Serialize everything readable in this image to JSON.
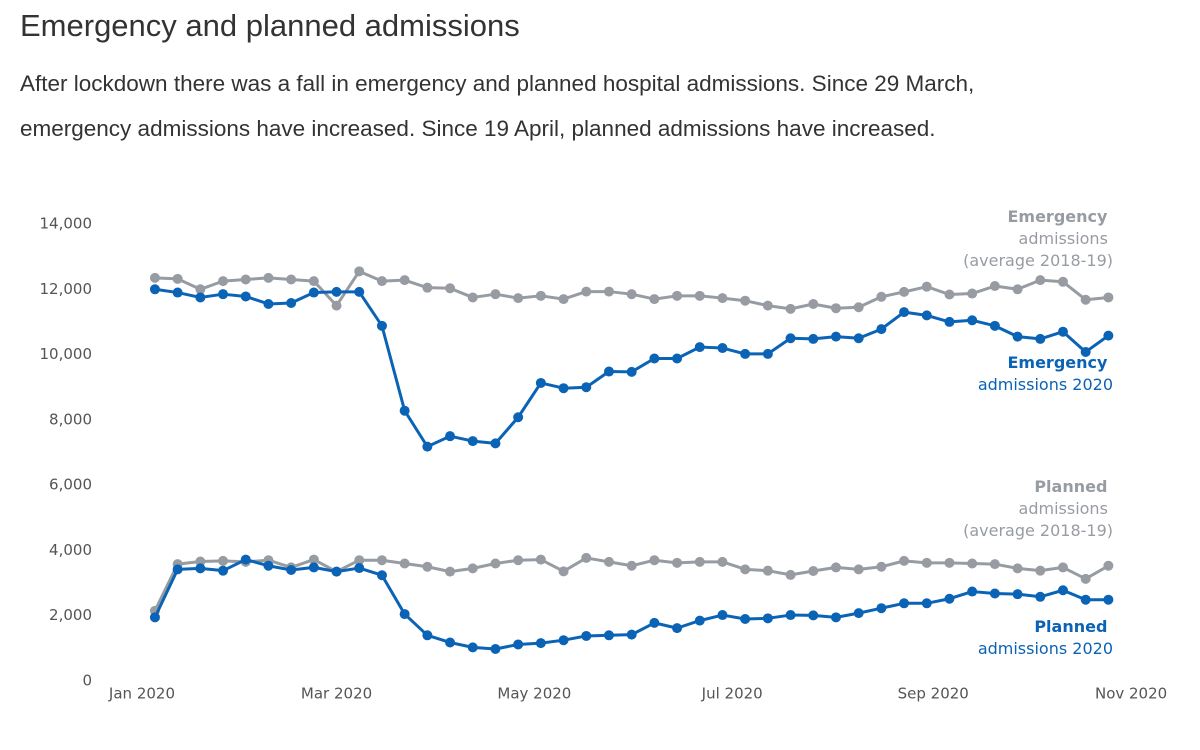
{
  "chart_data": {
    "type": "line",
    "title": "Emergency and planned admissions",
    "subtitle": [
      "After lockdown there was a fall in emergency and planned hospital admissions. Since 29 March,",
      "emergency admissions have increased. Since 19 April, planned admissions have increased."
    ],
    "x": [
      4,
      11,
      18,
      25,
      32,
      39,
      46,
      53,
      60,
      67,
      74,
      81,
      88,
      95,
      102,
      109,
      116,
      123,
      130,
      137,
      144,
      151,
      158,
      165,
      172,
      179,
      186,
      193,
      200,
      207,
      214,
      221,
      228,
      235,
      242,
      249,
      256,
      263,
      270,
      277,
      284,
      291,
      298
    ],
    "xlim": [
      -11.4,
      317
    ],
    "xticks": [
      {
        "value": 0,
        "label": "Jan 2020"
      },
      {
        "value": 60,
        "label": "Mar 2020"
      },
      {
        "value": 121,
        "label": "May 2020"
      },
      {
        "value": 182,
        "label": "Jul 2020"
      },
      {
        "value": 244,
        "label": "Sep 2020"
      },
      {
        "value": 305,
        "label": "Nov 2020"
      }
    ],
    "ylim": [
      0,
      14000
    ],
    "yticks": [
      0,
      {
        "value": 2000,
        "label": "2,000"
      },
      {
        "value": 4000,
        "label": "4,000"
      },
      {
        "value": 6000,
        "label": "6,000"
      },
      {
        "value": 8000,
        "label": "8,000"
      },
      {
        "value": 10000,
        "label": "10,000"
      },
      {
        "value": 12000,
        "label": "12,000"
      },
      {
        "value": 14000,
        "label": "14,000"
      }
    ],
    "grid": false,
    "series": [
      {
        "name": "Emergency admissions (average 2018-19)",
        "color": "#979ca3",
        "values": [
          12350,
          12320,
          12000,
          12250,
          12300,
          12350,
          12300,
          12250,
          11500,
          12550,
          12250,
          12280,
          12050,
          12030,
          11750,
          11850,
          11730,
          11800,
          11700,
          11930,
          11930,
          11850,
          11700,
          11800,
          11800,
          11730,
          11650,
          11500,
          11400,
          11550,
          11420,
          11450,
          11770,
          11920,
          12080,
          11840,
          11870,
          12100,
          12000,
          12280,
          12230,
          11680,
          11750
        ]
      },
      {
        "name": "Emergency admissions 2020",
        "color": "#0b63b6",
        "values": [
          12000,
          11900,
          11750,
          11850,
          11780,
          11550,
          11580,
          11900,
          11920,
          11920,
          10880,
          8280,
          7180,
          7500,
          7350,
          7280,
          8080,
          9130,
          8970,
          9000,
          9480,
          9470,
          9880,
          9880,
          10230,
          10200,
          10020,
          10020,
          10500,
          10480,
          10550,
          10500,
          10780,
          11300,
          11200,
          11000,
          11050,
          10880,
          10550,
          10480,
          10700,
          10080,
          10580
        ]
      },
      {
        "name": "Planned admissions (average 2018-19)",
        "color": "#979ca3",
        "values": [
          2150,
          3580,
          3660,
          3680,
          3650,
          3700,
          3480,
          3720,
          3350,
          3700,
          3700,
          3600,
          3500,
          3350,
          3450,
          3600,
          3700,
          3720,
          3360,
          3770,
          3650,
          3530,
          3700,
          3620,
          3650,
          3650,
          3420,
          3380,
          3250,
          3370,
          3480,
          3420,
          3500,
          3680,
          3620,
          3620,
          3600,
          3580,
          3450,
          3380,
          3480,
          3130,
          3530
        ]
      },
      {
        "name": "Planned admissions 2020",
        "color": "#0b63b6",
        "values": [
          1950,
          3420,
          3450,
          3380,
          3720,
          3530,
          3400,
          3480,
          3350,
          3460,
          3240,
          2050,
          1400,
          1180,
          1030,
          980,
          1120,
          1160,
          1250,
          1380,
          1400,
          1420,
          1780,
          1620,
          1850,
          2020,
          1900,
          1920,
          2020,
          2010,
          1950,
          2080,
          2230,
          2380,
          2380,
          2520,
          2740,
          2680,
          2660,
          2580,
          2780,
          2490,
          2490
        ]
      }
    ]
  }
}
